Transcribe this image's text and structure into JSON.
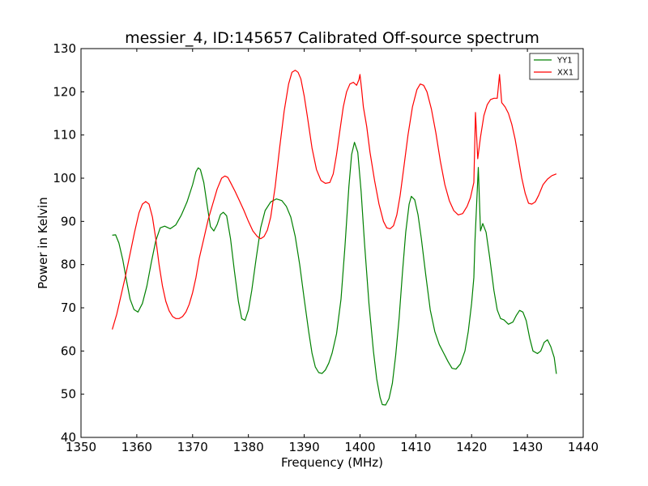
{
  "chart_data": {
    "type": "line",
    "title": "messier_4, ID:145657 Calibrated Off-source spectrum",
    "xlabel": "Frequency (MHz)",
    "ylabel": "Power in Kelvin",
    "xlim": [
      1350,
      1440
    ],
    "ylim": [
      40,
      130
    ],
    "xticks": [
      1350,
      1360,
      1370,
      1380,
      1390,
      1400,
      1410,
      1420,
      1430,
      1440
    ],
    "yticks": [
      40,
      50,
      60,
      70,
      80,
      90,
      100,
      110,
      120,
      130
    ],
    "grid": false,
    "legend_position": "top-right",
    "colors": {
      "YY1": "#008000",
      "XX1": "#ff0000"
    },
    "series": [
      {
        "name": "YY1",
        "x": [
          1355.6,
          1356.2,
          1356.8,
          1357.5,
          1358.2,
          1358.8,
          1359.5,
          1360.2,
          1361.0,
          1361.8,
          1362.6,
          1363.4,
          1364.2,
          1365.0,
          1366.0,
          1367.0,
          1368.0,
          1369.0,
          1370.0,
          1370.6,
          1371.0,
          1371.4,
          1372.0,
          1372.6,
          1373.2,
          1373.8,
          1374.4,
          1375.0,
          1375.5,
          1376.1,
          1376.8,
          1377.5,
          1378.2,
          1378.8,
          1379.4,
          1380.0,
          1380.6,
          1381.4,
          1382.2,
          1383.0,
          1384.0,
          1385.0,
          1386.0,
          1386.8,
          1387.6,
          1388.4,
          1389.2,
          1390.0,
          1390.8,
          1391.4,
          1392.0,
          1392.6,
          1393.2,
          1393.8,
          1394.4,
          1395.0,
          1395.8,
          1396.6,
          1397.3,
          1398.0,
          1398.5,
          1399.0,
          1399.6,
          1400.2,
          1400.8,
          1401.6,
          1402.4,
          1403.0,
          1403.6,
          1404.0,
          1404.6,
          1405.2,
          1405.8,
          1406.4,
          1407.0,
          1407.6,
          1408.2,
          1408.8,
          1409.2,
          1409.8,
          1410.4,
          1411.0,
          1411.8,
          1412.6,
          1413.4,
          1414.2,
          1415.0,
          1415.8,
          1416.5,
          1417.2,
          1418.0,
          1418.8,
          1419.4,
          1420.0,
          1420.4,
          1420.6,
          1421.2,
          1421.6,
          1422.0,
          1422.6,
          1423.2,
          1424.0,
          1424.6,
          1425.2,
          1425.8,
          1426.6,
          1427.4,
          1428.0,
          1428.6,
          1429.2,
          1429.8,
          1430.4,
          1431.0,
          1431.8,
          1432.4,
          1433.0,
          1433.6,
          1434.2,
          1434.8,
          1435.2
        ],
        "values": [
          86.8,
          86.9,
          85.0,
          81.0,
          76.0,
          72.0,
          69.6,
          69.0,
          71.0,
          75.0,
          80.5,
          85.5,
          88.5,
          88.9,
          88.3,
          89.2,
          91.5,
          94.5,
          98.5,
          101.5,
          102.4,
          102.0,
          99.0,
          93.8,
          88.8,
          87.8,
          89.3,
          91.6,
          92.1,
          91.3,
          86.0,
          78.5,
          71.5,
          67.5,
          67.1,
          69.5,
          74.0,
          81.5,
          88.5,
          92.5,
          94.5,
          95.2,
          94.8,
          93.5,
          91.0,
          86.5,
          80.0,
          72.0,
          64.5,
          59.5,
          56.3,
          55.0,
          54.8,
          55.6,
          57.2,
          59.5,
          64.0,
          72.0,
          84.0,
          98.0,
          105.5,
          108.3,
          106.0,
          97.0,
          85.0,
          71.0,
          60.0,
          53.5,
          49.3,
          47.6,
          47.5,
          49.0,
          52.5,
          59.0,
          67.5,
          78.0,
          87.5,
          94.0,
          95.8,
          95.0,
          91.5,
          86.0,
          77.5,
          69.5,
          64.5,
          61.5,
          59.5,
          57.5,
          56.0,
          55.8,
          57.0,
          60.0,
          64.5,
          71.0,
          77.0,
          85.5,
          102.5,
          87.8,
          89.5,
          87.5,
          82.0,
          74.0,
          69.5,
          67.5,
          67.2,
          66.2,
          66.7,
          68.2,
          69.4,
          69.0,
          67.0,
          63.0,
          60.0,
          59.4,
          60.0,
          62.0,
          62.6,
          61.0,
          58.5,
          54.7
        ]
      },
      {
        "name": "XX1",
        "x": [
          1355.6,
          1356.4,
          1357.2,
          1358.0,
          1358.8,
          1359.6,
          1360.4,
          1361.0,
          1361.6,
          1362.2,
          1362.8,
          1363.4,
          1364.0,
          1364.6,
          1365.2,
          1365.8,
          1366.4,
          1367.0,
          1367.6,
          1368.2,
          1368.8,
          1369.4,
          1370.0,
          1370.6,
          1371.2,
          1372.0,
          1372.8,
          1373.6,
          1374.4,
          1375.2,
          1375.8,
          1376.3,
          1376.8,
          1377.6,
          1378.4,
          1379.2,
          1380.0,
          1380.8,
          1381.6,
          1382.2,
          1382.8,
          1383.4,
          1384.0,
          1384.8,
          1385.6,
          1386.4,
          1387.2,
          1387.8,
          1388.4,
          1388.9,
          1389.4,
          1390.0,
          1390.6,
          1391.4,
          1392.2,
          1393.0,
          1393.8,
          1394.6,
          1395.2,
          1395.8,
          1396.4,
          1397.0,
          1397.6,
          1398.2,
          1398.8,
          1399.4,
          1399.8,
          1400.0,
          1400.3,
          1400.6,
          1401.2,
          1401.8,
          1402.6,
          1403.4,
          1404.2,
          1404.8,
          1405.4,
          1406.0,
          1406.6,
          1407.2,
          1407.8,
          1408.6,
          1409.4,
          1410.2,
          1410.8,
          1411.4,
          1412.0,
          1412.8,
          1413.6,
          1414.4,
          1415.2,
          1416.0,
          1416.8,
          1417.6,
          1418.4,
          1419.2,
          1419.8,
          1420.4,
          1420.7,
          1421.1,
          1421.6,
          1422.2,
          1422.8,
          1423.4,
          1424.0,
          1424.6,
          1425.0,
          1425.4,
          1426.0,
          1426.6,
          1427.2,
          1427.8,
          1428.4,
          1429.0,
          1429.6,
          1430.2,
          1430.8,
          1431.4,
          1432.0,
          1432.8,
          1433.6,
          1434.4,
          1435.2
        ],
        "values": [
          65.0,
          68.5,
          73.0,
          77.5,
          82.5,
          87.5,
          92.0,
          94.0,
          94.6,
          94.0,
          91.0,
          86.0,
          80.0,
          75.0,
          71.5,
          69.3,
          68.0,
          67.5,
          67.5,
          68.0,
          69.0,
          70.8,
          73.5,
          77.0,
          81.5,
          86.0,
          90.5,
          94.0,
          97.5,
          100.0,
          100.5,
          100.2,
          99.0,
          97.0,
          94.8,
          92.5,
          90.0,
          87.8,
          86.5,
          86.0,
          86.5,
          88.0,
          91.0,
          98.0,
          107.0,
          115.5,
          121.8,
          124.5,
          125.0,
          124.5,
          123.0,
          119.0,
          114.0,
          107.0,
          102.0,
          99.5,
          98.8,
          99.0,
          101.0,
          105.5,
          111.0,
          116.5,
          120.0,
          121.8,
          122.2,
          121.5,
          122.8,
          124.0,
          120.5,
          116.5,
          112.0,
          106.0,
          99.5,
          94.0,
          90.0,
          88.5,
          88.3,
          89.0,
          91.5,
          96.0,
          102.0,
          110.0,
          116.5,
          120.5,
          121.8,
          121.5,
          120.0,
          116.0,
          110.5,
          104.0,
          98.5,
          94.8,
          92.5,
          91.5,
          91.8,
          93.5,
          95.5,
          99.0,
          115.2,
          104.5,
          109.5,
          114.5,
          117.0,
          118.2,
          118.5,
          118.5,
          124.0,
          117.5,
          116.5,
          115.0,
          112.5,
          109.0,
          104.5,
          100.0,
          96.5,
          94.2,
          94.0,
          94.5,
          96.0,
          98.5,
          99.8,
          100.6,
          101.0
        ]
      }
    ]
  }
}
